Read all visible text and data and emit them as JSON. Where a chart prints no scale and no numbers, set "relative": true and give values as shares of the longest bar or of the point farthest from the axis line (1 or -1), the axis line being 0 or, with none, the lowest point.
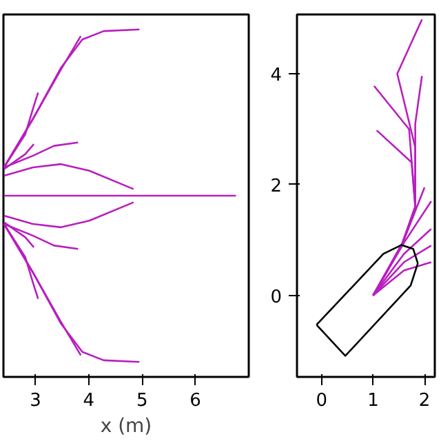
{
  "chart_data": [
    {
      "type": "line",
      "xlabel": "x (m)",
      "xlim": [
        2.4,
        7.0
      ],
      "xticks": [
        3,
        4,
        5,
        6
      ],
      "relative": true,
      "tick_labels": "x",
      "grid": false,
      "line_style": "solid",
      "series": [
        {
          "color": "#b81fbf",
          "x": [
            2.41,
            2.95,
            3.48,
            3.88,
            4.28,
            4.95
          ],
          "values": [
            0.17,
            0.46,
            0.77,
            0.94,
            0.99,
            1
          ]
        },
        {
          "color": "#b81fbf",
          "x": [
            2.41,
            2.95,
            3.48,
            3.85
          ],
          "values": [
            0.17,
            0.46,
            0.76,
            0.96
          ]
        },
        {
          "color": "#b81fbf",
          "x": [
            2.41,
            2.81,
            2.97,
            3.05
          ],
          "values": [
            0.17,
            0.37,
            0.54,
            0.62
          ]
        },
        {
          "color": "#b81fbf",
          "x": [
            2.41,
            2.95,
            3.35,
            3.8
          ],
          "values": [
            0.17,
            0.24,
            0.3,
            0.32
          ]
        },
        {
          "color": "#b81fbf",
          "x": [
            2.41,
            2.81,
            2.97
          ],
          "values": [
            0.16,
            0.25,
            0.31
          ]
        },
        {
          "color": "#b81fbf",
          "x": [
            2.41,
            2.95,
            3.48,
            4.01,
            4.84
          ],
          "values": [
            0.12,
            0.17,
            0.19,
            0.15,
            0.04
          ]
        },
        {
          "color": "#b81fbf",
          "x": [
            2.41,
            6.76
          ],
          "values": [
            0,
            0
          ]
        },
        {
          "color": "#b81fbf",
          "x": [
            2.41,
            2.95,
            3.48,
            4.01,
            4.84
          ],
          "values": [
            -0.12,
            -0.17,
            -0.19,
            -0.15,
            -0.04
          ]
        },
        {
          "color": "#b81fbf",
          "x": [
            2.41,
            2.81,
            2.97
          ],
          "values": [
            -0.16,
            -0.25,
            -0.31
          ]
        },
        {
          "color": "#b81fbf",
          "x": [
            2.41,
            2.95,
            3.35,
            3.8
          ],
          "values": [
            -0.17,
            -0.24,
            -0.3,
            -0.32
          ]
        },
        {
          "color": "#b81fbf",
          "x": [
            2.41,
            2.81,
            2.97,
            3.05
          ],
          "values": [
            -0.17,
            -0.37,
            -0.54,
            -0.62
          ]
        },
        {
          "color": "#b81fbf",
          "x": [
            2.41,
            2.95,
            3.48,
            3.85
          ],
          "values": [
            -0.17,
            -0.46,
            -0.76,
            -0.96
          ]
        },
        {
          "color": "#b81fbf",
          "x": [
            2.41,
            2.95,
            3.48,
            3.88,
            4.28,
            4.95
          ],
          "values": [
            -0.17,
            -0.46,
            -0.77,
            -0.94,
            -0.99,
            -1
          ]
        }
      ]
    },
    {
      "type": "line",
      "xlim": [
        -0.48,
        2.2
      ],
      "ylim": [
        -1.47,
        5.07
      ],
      "xticks": [
        0,
        1,
        2
      ],
      "yticks": [
        0,
        2,
        4
      ],
      "grid": false,
      "line_style": "solid",
      "series": [
        {
          "color": "#b81fbf",
          "x": [
            1.0,
            1.55,
            1.82,
            1.82,
            1.47,
            1.95
          ],
          "values": [
            0,
            0.89,
            1.6,
            2.67,
            4.0,
            4.98
          ]
        },
        {
          "color": "#b81fbf",
          "x": [
            1.0,
            1.55,
            1.82,
            1.7,
            1.02
          ],
          "values": [
            0,
            0.89,
            1.6,
            3.0,
            3.78
          ]
        },
        {
          "color": "#b81fbf",
          "x": [
            1.0,
            1.55,
            1.82,
            1.75,
            1.07
          ],
          "values": [
            0,
            0.89,
            1.6,
            2.4,
            2.98
          ]
        },
        {
          "color": "#b81fbf",
          "x": [
            1.0,
            1.55,
            1.82,
            1.82,
            1.95
          ],
          "values": [
            0,
            0.89,
            1.6,
            3.1,
            3.96
          ]
        },
        {
          "color": "#b81fbf",
          "x": [
            1.0,
            1.6,
            2.0
          ],
          "values": [
            0,
            1.0,
            1.95
          ]
        },
        {
          "color": "#b81fbf",
          "x": [
            1.0,
            1.6,
            2.13
          ],
          "values": [
            0,
            0.95,
            1.7
          ]
        },
        {
          "color": "#b81fbf",
          "x": [
            1.0,
            1.6,
            2.13
          ],
          "values": [
            0,
            0.75,
            1.2
          ]
        },
        {
          "color": "#b81fbf",
          "x": [
            1.0,
            1.6,
            2.13
          ],
          "values": [
            0,
            0.6,
            0.9
          ]
        },
        {
          "color": "#b81fbf",
          "x": [
            1.0,
            1.6,
            2.13
          ],
          "values": [
            0,
            0.45,
            0.6
          ]
        },
        {
          "color": "#000000",
          "x": [
            -0.1,
            0.46,
            1.73,
            1.87
          ],
          "values": [
            -0.53,
            -1.09,
            0.18,
            0.58
          ]
        },
        {
          "color": "#000000",
          "x": [
            -0.1,
            1.2,
            1.55,
            1.78,
            1.87
          ],
          "values": [
            -0.53,
            0.75,
            0.91,
            0.84,
            0.58
          ]
        }
      ]
    }
  ]
}
